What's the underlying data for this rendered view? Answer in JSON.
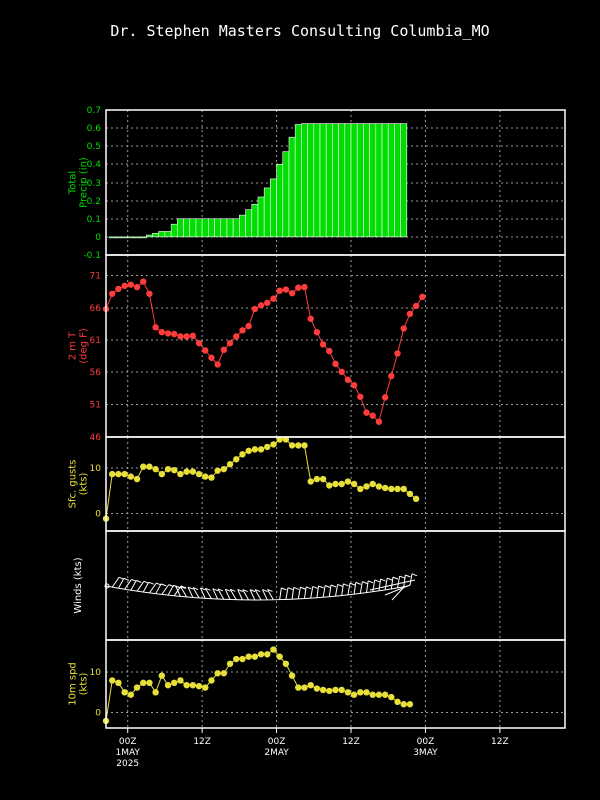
{
  "title": "Dr. Stephen Masters Consulting  Columbia_MO",
  "x_axis": {
    "tick_labels": [
      {
        "hour": 0,
        "lines": [
          "00Z",
          "1MAY",
          "2025"
        ]
      },
      {
        "hour": 12,
        "lines": [
          "12Z"
        ]
      },
      {
        "hour": 24,
        "lines": [
          "00Z",
          "2MAY"
        ]
      },
      {
        "hour": 36,
        "lines": [
          "12Z"
        ]
      },
      {
        "hour": 48,
        "lines": [
          "00Z",
          "3MAY"
        ]
      },
      {
        "hour": 60,
        "lines": [
          "12Z"
        ]
      }
    ],
    "xlim_hours": [
      -3.5,
      70.5
    ]
  },
  "colors": {
    "precip": "#00dd00",
    "temp": "#ff3c3c",
    "gust": "#e8e03a",
    "wind": "#ffffff",
    "axis": "#ffffff",
    "grid": "#9a9a9a"
  },
  "chart_data": [
    {
      "type": "bar",
      "ylabel": [
        "Total",
        "Precip (in)"
      ],
      "yticks": [
        "0.7",
        "0.6",
        "0.5",
        "0.4",
        "0.3",
        "0.2",
        "0.1",
        "0",
        "-0.1"
      ],
      "ylim": [
        -0.1,
        0.7
      ],
      "start_hour": -3,
      "step_hours": 1,
      "values": [
        0,
        0,
        0,
        0,
        0,
        0,
        0.01,
        0.02,
        0.03,
        0.03,
        0.07,
        0.1,
        0.1,
        0.1,
        0.1,
        0.1,
        0.1,
        0.1,
        0.1,
        0.1,
        0.1,
        0.12,
        0.15,
        0.18,
        0.22,
        0.27,
        0.32,
        0.4,
        0.47,
        0.55,
        0.62,
        0.625,
        0.625,
        0.625,
        0.625,
        0.625,
        0.625,
        0.625,
        0.625,
        0.625,
        0.625,
        0.625,
        0.625,
        0.625,
        0.625,
        0.625,
        0.625,
        0.625
      ]
    },
    {
      "type": "line",
      "ylabel": [
        "2 m T",
        "(deg F)"
      ],
      "yticks": [
        "71",
        "66",
        "61",
        "56",
        "51",
        "46"
      ],
      "ylim": [
        46,
        72.5
      ],
      "start_hour": -3.5,
      "step_hours": 1,
      "values": [
        67,
        69.5,
        70.3,
        70.8,
        71,
        70.6,
        71.5,
        69.5,
        64,
        63.2,
        63,
        62.9,
        62.5,
        62.5,
        62.6,
        61.4,
        60.2,
        59,
        57.9,
        60.3,
        61.4,
        62.5,
        63.5,
        64.2,
        67,
        67.6,
        68,
        68.7,
        70,
        70.2,
        69.6,
        70.5,
        70.6,
        65.4,
        63.2,
        61.2,
        60.1,
        58,
        56.7,
        55.4,
        54.5,
        52.6,
        50,
        49.5,
        48.5,
        52.5,
        56,
        59.7,
        63.8,
        66.2,
        67.5,
        69
      ]
    },
    {
      "type": "line",
      "ylabel": [
        "Sfc. gusts",
        "(kts)"
      ],
      "yticks": [
        "10",
        "0"
      ],
      "ylim": [
        -2.5,
        16.5
      ],
      "start_hour": -3.5,
      "step_hours": 1,
      "values": [
        0,
        9,
        9,
        9,
        8.5,
        8,
        10.5,
        10.5,
        10,
        9,
        10,
        9.8,
        9,
        9.5,
        9.5,
        9,
        8.5,
        8.3,
        9.7,
        10,
        11,
        12,
        13,
        13.7,
        14,
        14,
        14.5,
        15,
        16,
        16,
        14.8,
        14.8,
        14.8,
        7.5,
        8,
        8,
        6.7,
        7,
        7,
        7.5,
        7,
        6,
        6.5,
        7,
        6.5,
        6.2,
        6,
        6,
        6,
        5,
        4
      ]
    },
    {
      "type": "line",
      "ylabel": [
        "Winds (kts)"
      ],
      "yticks": [],
      "series_note": "wind barbs along one line"
    },
    {
      "type": "line",
      "ylabel": [
        "10m spd",
        "(kts)"
      ],
      "yticks": [
        "10",
        "0"
      ],
      "ylim": [
        -1.5,
        17
      ],
      "start_hour": -3.5,
      "step_hours": 1,
      "values": [
        0,
        8.5,
        8,
        6,
        5.5,
        7,
        8,
        8,
        6,
        9.5,
        7.5,
        8,
        8.5,
        7.5,
        7.5,
        7.3,
        7,
        8.5,
        10,
        10,
        12,
        13,
        13,
        13.5,
        13.5,
        14,
        14,
        15,
        13.5,
        12,
        9.5,
        7,
        7,
        7.5,
        6.8,
        6.5,
        6.3,
        6.5,
        6.5,
        6,
        5.5,
        6,
        6,
        5.5,
        5.5,
        5.5,
        5,
        4,
        3.5,
        3.5
      ]
    }
  ]
}
